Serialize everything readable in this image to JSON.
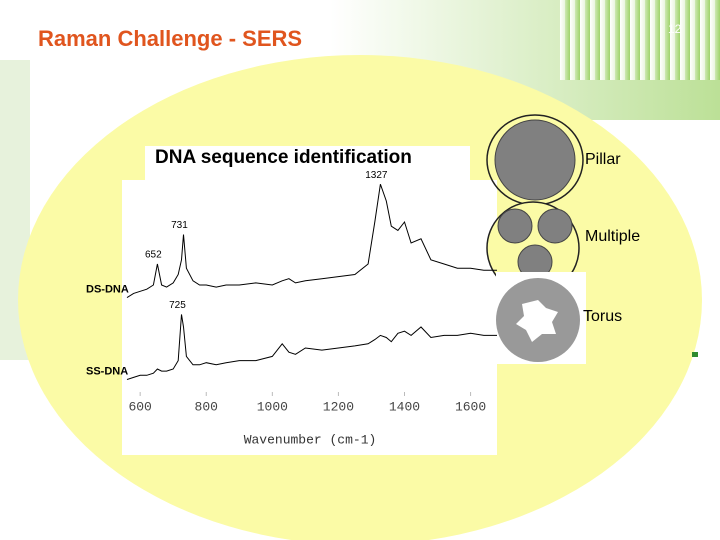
{
  "slide": {
    "title": "Raman Challenge - SERS",
    "page_number": "12",
    "shapes": {
      "pillar": "Pillar",
      "multiple": "Multiple",
      "torus": "Torus"
    }
  },
  "chart_data": {
    "type": "line",
    "title": "DNA sequence identification",
    "x_label": "Wavenumber (cm-1)",
    "x": [
      560,
      580,
      600,
      620,
      640,
      652,
      665,
      680,
      700,
      715,
      725,
      731,
      740,
      760,
      780,
      800,
      830,
      860,
      900,
      950,
      1000,
      1030,
      1050,
      1070,
      1100,
      1150,
      1200,
      1250,
      1290,
      1310,
      1327,
      1345,
      1360,
      1380,
      1400,
      1420,
      1450,
      1480,
      1520,
      1560,
      1600,
      1640,
      1680
    ],
    "series": [
      {
        "name": "DS-DNA",
        "color": "#000000",
        "peaks": [
          652,
          731,
          1327
        ],
        "values": [
          44,
          46,
          47,
          48,
          50,
          60,
          50,
          49,
          51,
          55,
          62,
          74,
          58,
          52,
          50,
          50,
          49,
          50,
          50,
          51,
          50,
          52,
          53,
          51,
          52,
          53,
          54,
          55,
          60,
          80,
          98,
          90,
          78,
          76,
          80,
          70,
          72,
          62,
          60,
          58,
          58,
          57,
          57
        ]
      },
      {
        "name": "SS-DNA",
        "color": "#000000",
        "peaks": [
          725
        ],
        "values": [
          5,
          6,
          7,
          7,
          8,
          10,
          9,
          9,
          10,
          14,
          36,
          30,
          16,
          12,
          12,
          13,
          12,
          13,
          14,
          14,
          16,
          22,
          18,
          17,
          20,
          19,
          20,
          21,
          22,
          24,
          26,
          25,
          23,
          27,
          28,
          26,
          30,
          25,
          26,
          26,
          27,
          26,
          26
        ]
      }
    ],
    "xlim": [
      545,
      1680
    ],
    "ylim": [
      0,
      100
    ],
    "xticks": [
      600,
      800,
      1000,
      1200,
      1400,
      1600
    ],
    "grid": false
  }
}
